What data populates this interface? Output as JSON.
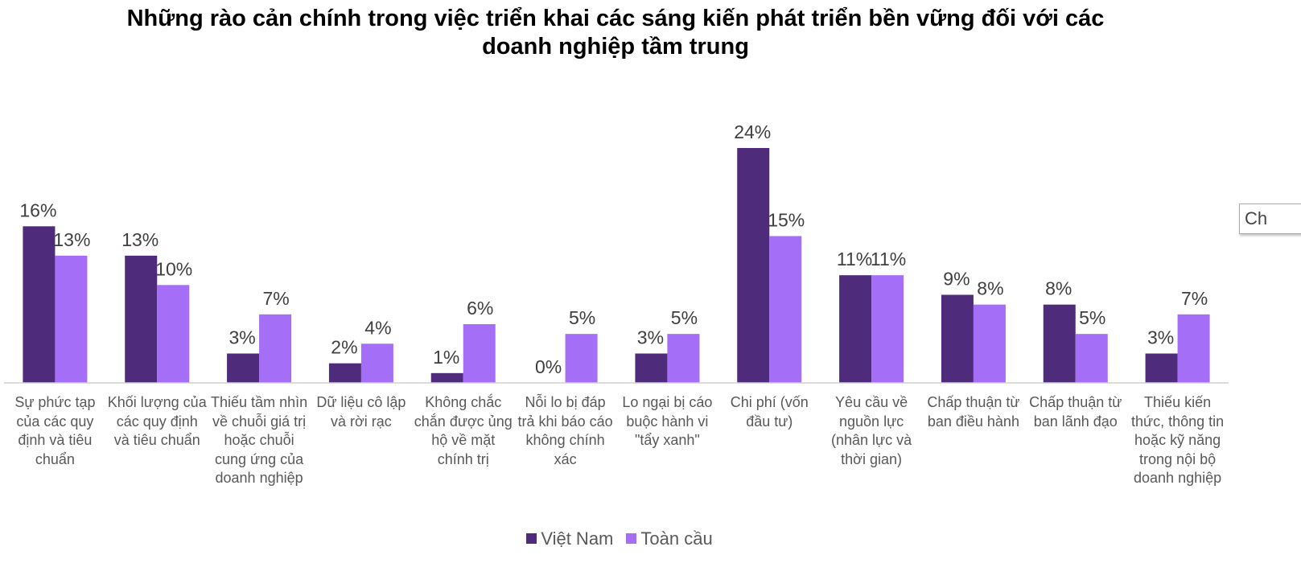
{
  "chart_data": {
    "type": "bar",
    "title": "Những rào cản chính trong việc triển khai các sáng kiến phát triển bền vững đối với các doanh nghiệp tầm trung",
    "categories": [
      "Sự phức tạp của các quy định và tiêu chuẩn",
      "Khối lượng của các quy định và tiêu chuẩn",
      "Thiếu tầm nhìn về chuỗi giá trị hoặc chuỗi cung ứng của doanh nghiệp",
      "Dữ liệu cô lập và rời rạc",
      "Không chắc chắn được ủng hộ về mặt chính trị",
      "Nỗi lo bị đáp trả khi báo cáo không chính xác",
      "Lo ngại bị cáo buộc hành vi \"tẩy xanh\"",
      "Chi phí (vốn đầu tư)",
      "Yêu cầu về nguồn lực (nhân lực và thời gian)",
      "Chấp thuận từ ban điều hành",
      "Chấp thuận từ ban lãnh đạo",
      "Thiếu kiến thức, thông tin hoặc kỹ năng trong nội bộ doanh nghiệp"
    ],
    "series": [
      {
        "name": "Việt Nam",
        "color": "#4e2b7b",
        "values": [
          16,
          13,
          3,
          2,
          1,
          0,
          3,
          24,
          11,
          9,
          8,
          3
        ],
        "value_labels": [
          "16%",
          "13%",
          "3%",
          "2%",
          "1%",
          "0%",
          "3%",
          "24%",
          "11%",
          "9%",
          "8%",
          "3%"
        ]
      },
      {
        "name": "Toàn cầu",
        "color": "#a46ef6",
        "values": [
          13,
          10,
          7,
          4,
          6,
          5,
          5,
          15,
          11,
          8,
          5,
          7
        ],
        "value_labels": [
          "13%",
          "10%",
          "7%",
          "4%",
          "6%",
          "5%",
          "5%",
          "15%",
          "11%",
          "8%",
          "5%",
          "7%"
        ]
      }
    ],
    "legend": "bottom"
  },
  "overlay_text": "Ch"
}
